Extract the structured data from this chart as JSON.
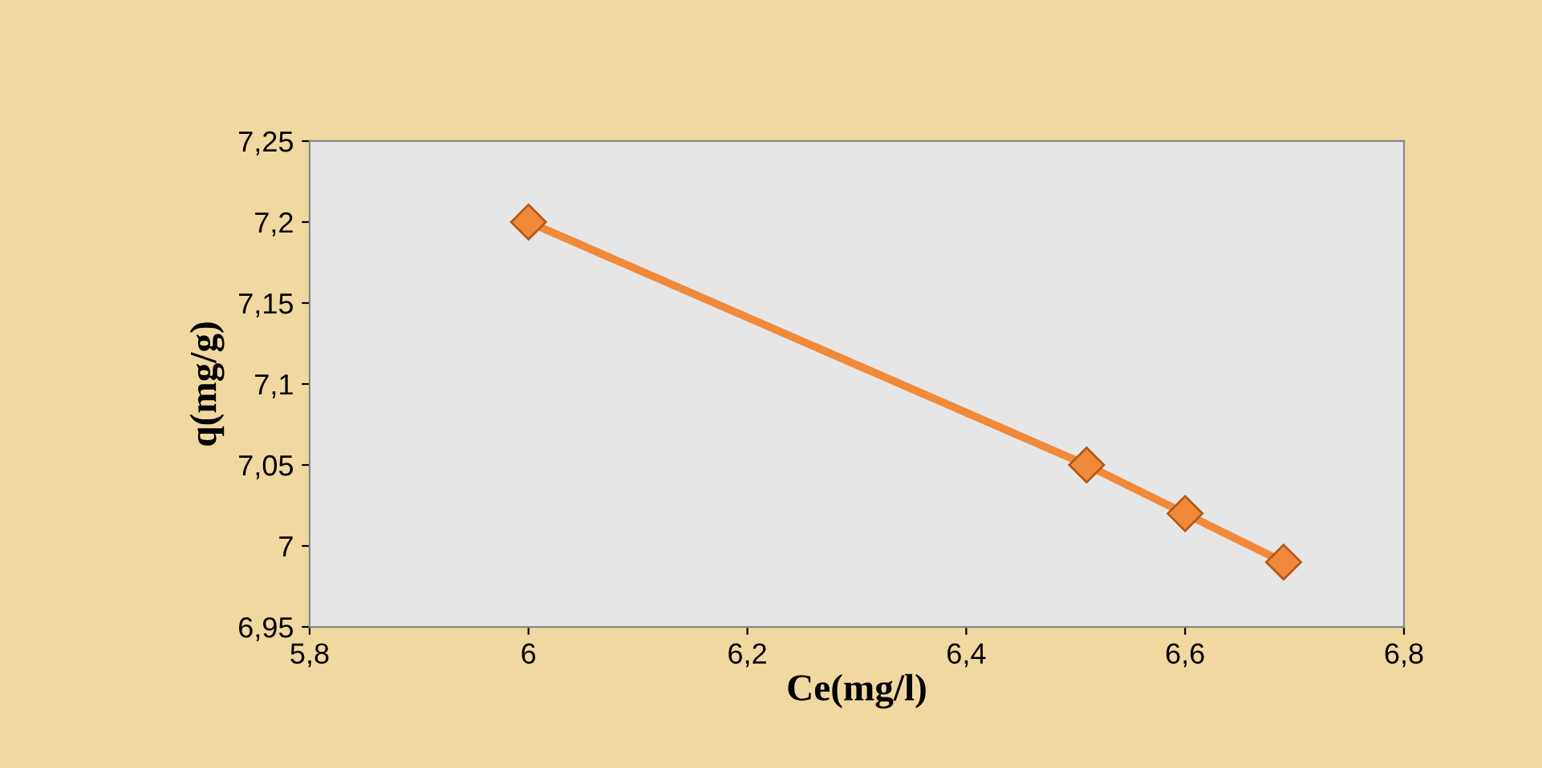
{
  "chart_data": {
    "type": "line",
    "xlabel": "Ce(mg/l)",
    "ylabel": "q(mg/g)",
    "x": [
      6,
      6.51,
      6.6,
      6.69
    ],
    "series": [
      {
        "color": "#f08a3a",
        "values": [
          7.2,
          7.05,
          7.02,
          6.99
        ]
      }
    ],
    "marker": "diamond",
    "line_style": "solid",
    "grid": false,
    "legend": false,
    "xlim": [
      5.8,
      6.8
    ],
    "xticks": [
      {
        "value": 5.8,
        "label": "5,8"
      },
      6,
      {
        "value": 6.2,
        "label": "6,2"
      },
      {
        "value": 6.4,
        "label": "6,4"
      },
      {
        "value": 6.6,
        "label": "6,6"
      },
      {
        "value": 6.8,
        "label": "6,8"
      }
    ],
    "ylim": [
      6.95,
      7.25
    ],
    "yticks": [
      {
        "value": 6.95,
        "label": "6,95"
      },
      7,
      {
        "value": 7.05,
        "label": "7,05"
      },
      {
        "value": 7.1,
        "label": "7,1"
      },
      {
        "value": 7.15,
        "label": "7,15"
      },
      {
        "value": 7.2,
        "label": "7,2"
      },
      {
        "value": 7.25,
        "label": "7,25"
      }
    ]
  }
}
